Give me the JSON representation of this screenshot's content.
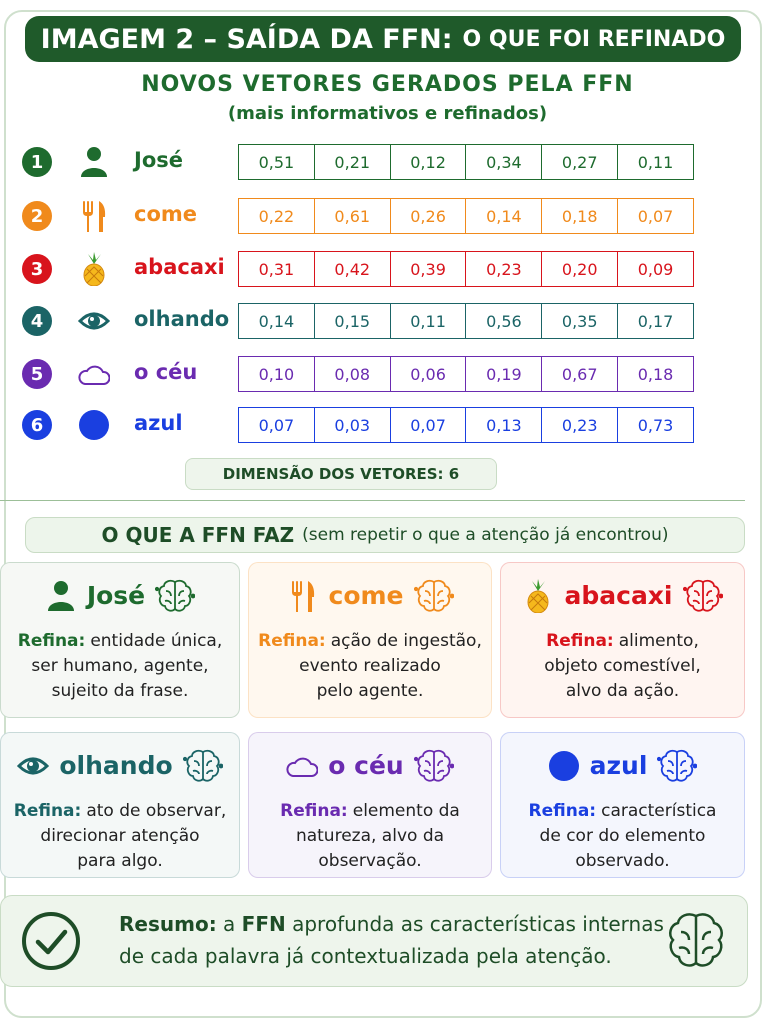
{
  "header": {
    "title": "IMAGEM 2 – SAÍDA DA FFN:",
    "title_suffix": "O QUE FOI REFINADO"
  },
  "vectors": {
    "title": "NOVOS VETORES GERADOS PELA FFN",
    "subtitle": "(mais informativos e refinados)",
    "rows": [
      {
        "number": "1",
        "word": "José",
        "color": "#1e6b2e",
        "values": [
          "0,51",
          "0,21",
          "0,12",
          "0,34",
          "0,27",
          "0,11"
        ]
      },
      {
        "number": "2",
        "word": "come",
        "color": "#f08a1c",
        "values": [
          "0,22",
          "0,61",
          "0,26",
          "0,14",
          "0,18",
          "0,07"
        ]
      },
      {
        "number": "3",
        "word": "abacaxi",
        "color": "#d8141c",
        "values": [
          "0,31",
          "0,42",
          "0,39",
          "0,23",
          "0,20",
          "0,09"
        ]
      },
      {
        "number": "4",
        "word": "olhando",
        "color": "#1b6466",
        "values": [
          "0,14",
          "0,15",
          "0,11",
          "0,56",
          "0,35",
          "0,17"
        ]
      },
      {
        "number": "5",
        "word": "o céu",
        "color": "#6a2bb0",
        "values": [
          "0,10",
          "0,08",
          "0,06",
          "0,19",
          "0,67",
          "0,18"
        ]
      },
      {
        "number": "6",
        "word": "azul",
        "color": "#1a3fe0",
        "values": [
          "0,07",
          "0,03",
          "0,07",
          "0,13",
          "0,23",
          "0,73"
        ]
      }
    ],
    "dimension_label": "DIMENSÃO DOS VETORES: 6"
  },
  "ffn": {
    "title": "O QUE A FFN FAZ",
    "note": "(sem repetir o que a atenção já encontrou)",
    "cards": [
      {
        "word": "José",
        "label": "Refina:",
        "color": "#1e6b2e",
        "lines": [
          "entidade única,",
          "ser humano, agente,",
          "sujeito da frase."
        ]
      },
      {
        "word": "come",
        "label": "Refina:",
        "color": "#f08a1c",
        "lines": [
          "ação de ingestão,",
          "evento realizado",
          "pelo agente."
        ]
      },
      {
        "word": "abacaxi",
        "label": "Refina:",
        "color": "#d8141c",
        "lines": [
          "alimento,",
          "objeto comestível,",
          "alvo da ação."
        ]
      },
      {
        "word": "olhando",
        "label": "Refina:",
        "color": "#1b6466",
        "lines": [
          "ato de observar,",
          "direcionar atenção",
          "para algo."
        ]
      },
      {
        "word": "o céu",
        "label": "Refina:",
        "color": "#6a2bb0",
        "lines": [
          "elemento da",
          "natureza, alvo da",
          "observação."
        ]
      },
      {
        "word": "azul",
        "label": "Refina:",
        "color": "#1a3fe0",
        "lines": [
          "característica",
          "de cor do elemento",
          "observado."
        ]
      }
    ]
  },
  "summary": {
    "label": "Resumo:",
    "part1": "a",
    "part2": "FFN",
    "part3": "aprofunda as características internas",
    "line2": "de cada palavra já contextualizada pela atenção."
  }
}
